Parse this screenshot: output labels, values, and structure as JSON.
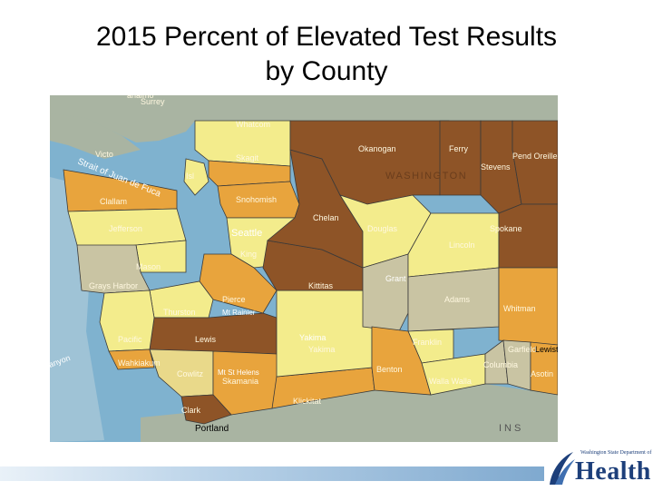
{
  "title": {
    "line1": "2015 Percent of Elevated Test Results",
    "line2": "by County"
  },
  "colors": {
    "water": "#7fb2cf",
    "land_gray": "#a9b4a2",
    "category_lightest": "#f3ec8c",
    "category_light": "#e9d98a",
    "category_gray": "#c9c4a3",
    "category_orange": "#e8a43d",
    "category_darkorange": "#cf8a2c",
    "category_brown": "#8e5427",
    "border": "#3a3a3a"
  },
  "map": {
    "state_label": "WASHINGTON",
    "places": {
      "surrey": "Surrey",
      "victoria": "Victo",
      "strait": "Strait of Juan de Fuca",
      "island": "Isl",
      "seattle": "Seattle",
      "canyon": "anyon",
      "portland": "Portland",
      "lewiston": "Lewist",
      "yakima_city": "Yakima",
      "mt_st_helens": "Mt St Helens",
      "mt_rainier": "Mt Rainier",
      "anaimo": "anaimo",
      "ins": "INS"
    },
    "counties": {
      "whatcom": "Whatcom",
      "skagit": "Skagit",
      "snohomish": "Snohomish",
      "clallam": "Clallam",
      "jefferson": "Jefferson",
      "mason": "Mason",
      "grays_harbor": "Grays Harbor",
      "king": "King",
      "pierce": "Pierce",
      "thurston": "Thurston",
      "lewis": "Lewis",
      "pacific": "Pacific",
      "wahkiakum": "Wahkiakum",
      "cowlitz": "Cowlitz",
      "skamania": "Skamania",
      "clark": "Clark",
      "klickitat": "Klickitat",
      "yakima": "Yakima",
      "kittitas": "Kittitas",
      "chelan": "Chelan",
      "okanogan": "Okanogan",
      "douglas": "Douglas",
      "grant": "Grant",
      "ferry": "Ferry",
      "stevens": "Stevens",
      "pend_oreille": "Pend Oreille",
      "lincoln": "Lincoln",
      "spokane": "Spokane",
      "adams": "Adams",
      "whitman": "Whitman",
      "franklin": "Franklin",
      "benton": "Benton",
      "walla_walla": "Walla Walla",
      "columbia": "Columbia",
      "garfield": "Garfield",
      "asotin": "Asotin"
    }
  },
  "logo": {
    "small_text": "Washington State Department of",
    "big_text": "Health"
  }
}
